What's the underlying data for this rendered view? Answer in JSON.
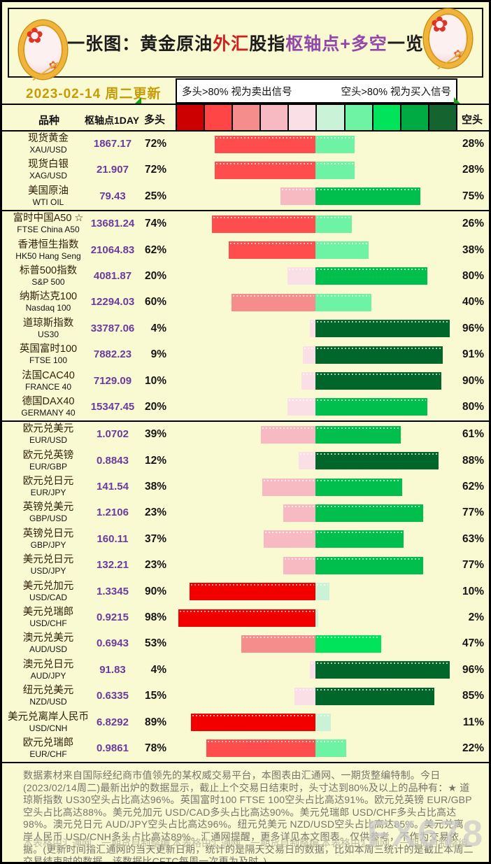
{
  "header": {
    "title_parts": [
      {
        "text": "一张图：黄金原油",
        "color": "#1c1c1c"
      },
      {
        "text": "外汇",
        "color": "#cf2020"
      },
      {
        "text": "股指",
        "color": "#1c1c1c"
      },
      {
        "text": "枢轴点+多空",
        "color": "#9548a8"
      },
      {
        "text": "一览",
        "color": "#1c1c1c"
      }
    ],
    "date": "2023-02-14 周二更新"
  },
  "legend": {
    "long_note": "多头>80% 视为卖出信号",
    "short_note": "空头>80% 视为买入信号",
    "scale_colors": [
      "#cc0000",
      "#ff4545",
      "#f58d8d",
      "#f7bac3",
      "#fbdfe7",
      "#c9f2d6",
      "#6ef2a4",
      "#00e35a",
      "#00ab43",
      "#15632e"
    ]
  },
  "table": {
    "headers": {
      "variety": "品种",
      "pivot": "枢轴点1DAY",
      "long": "多头",
      "short": "空头"
    }
  },
  "rows": [
    {
      "group": 0,
      "name": "现货黄金",
      "code": "XAU/USD",
      "pivot": "1867.17",
      "long": "72%",
      "short": "28%",
      "long_color": "#ff4d4d",
      "short_color": "#6ef2a4"
    },
    {
      "group": 0,
      "name": "现货白银",
      "code": "XAG/USD",
      "pivot": "21.907",
      "long": "72%",
      "short": "28%",
      "long_color": "#ff4d4d",
      "short_color": "#6ef2a4"
    },
    {
      "group": 0,
      "name": "美国原油",
      "code": "WTI OIL",
      "pivot": "79.43",
      "long": "25%",
      "short": "75%",
      "long_color": "#f7bac3",
      "short_color": "#00bf4d"
    },
    {
      "group": 1,
      "name": "富时中国A50 ☆",
      "code": "FTSE China A50",
      "pivot": "13681.24",
      "long": "74%",
      "short": "26%",
      "long_color": "#ff4d4d",
      "short_color": "#6ef2a4"
    },
    {
      "group": 1,
      "name": "香港恒生指数",
      "code": "HK50 Hang Seng",
      "pivot": "21064.83",
      "long": "62%",
      "short": "38%",
      "long_color": "#ff4d4d",
      "short_color": "#6ef2a4"
    },
    {
      "group": 1,
      "name": "标普500指数",
      "code": "S&P 500",
      "pivot": "4081.87",
      "long": "20%",
      "short": "80%",
      "long_color": "#fbdfe7",
      "short_color": "#00bf4d"
    },
    {
      "group": 1,
      "name": "纳斯达克100",
      "code": "Nasdaq 100",
      "pivot": "12294.03",
      "long": "60%",
      "short": "40%",
      "long_color": "#f58d8d",
      "short_color": "#6ef2a4"
    },
    {
      "group": 1,
      "name": "道琼斯指数",
      "code": "US30",
      "pivot": "33787.06",
      "long": "4%",
      "short": "96%",
      "long_color": "#fbdfe7",
      "short_color": "#006629"
    },
    {
      "group": 1,
      "name": "英国富时100",
      "code": "FTSE 100",
      "pivot": "7882.23",
      "long": "9%",
      "short": "91%",
      "long_color": "#fbdfe7",
      "short_color": "#006629"
    },
    {
      "group": 1,
      "name": "法国CAC40",
      "code": "FRANCE 40",
      "pivot": "7129.09",
      "long": "10%",
      "short": "90%",
      "long_color": "#fbdfe7",
      "short_color": "#006629"
    },
    {
      "group": 1,
      "name": "德国DAX40",
      "code": "GERMANY 40",
      "pivot": "15347.45",
      "long": "20%",
      "short": "80%",
      "long_color": "#fbdfe7",
      "short_color": "#00bf4d"
    },
    {
      "group": 2,
      "name": "欧元兑美元",
      "code": "EUR/USD",
      "pivot": "1.0702",
      "long": "39%",
      "short": "61%",
      "long_color": "#f7bac3",
      "short_color": "#00bf4d"
    },
    {
      "group": 2,
      "name": "欧元兑英镑",
      "code": "EUR/GBP",
      "pivot": "0.8843",
      "long": "12%",
      "short": "88%",
      "long_color": "#fbdfe7",
      "short_color": "#006629"
    },
    {
      "group": 2,
      "name": "欧元兑日元",
      "code": "EUR/JPY",
      "pivot": "141.54",
      "long": "38%",
      "short": "62%",
      "long_color": "#f7bac3",
      "short_color": "#00bf4d"
    },
    {
      "group": 2,
      "name": "英镑兑美元",
      "code": "GBP/USD",
      "pivot": "1.2106",
      "long": "23%",
      "short": "77%",
      "long_color": "#f7bac3",
      "short_color": "#00bf4d"
    },
    {
      "group": 2,
      "name": "英镑兑日元",
      "code": "GBP/JPY",
      "pivot": "160.11",
      "long": "37%",
      "short": "63%",
      "long_color": "#f7bac3",
      "short_color": "#00bf4d"
    },
    {
      "group": 2,
      "name": "美元兑日元",
      "code": "USD/JPY",
      "pivot": "132.21",
      "long": "23%",
      "short": "77%",
      "long_color": "#f7bac3",
      "short_color": "#00bf4d"
    },
    {
      "group": 2,
      "name": "美元兑加元",
      "code": "USD/CAD",
      "pivot": "1.3345",
      "long": "90%",
      "short": "10%",
      "long_color": "#f20000",
      "short_color": "#c9f2d6"
    },
    {
      "group": 2,
      "name": "美元兑瑞郎",
      "code": "USD/CHF",
      "pivot": "0.9215",
      "long": "98%",
      "short": "2%",
      "long_color": "#f20000",
      "short_color": "#c9f2d6"
    },
    {
      "group": 2,
      "name": "澳元兑美元",
      "code": "AUD/USD",
      "pivot": "0.6943",
      "long": "53%",
      "short": "47%",
      "long_color": "#f58d8d",
      "short_color": "#00e35a"
    },
    {
      "group": 2,
      "name": "澳元兑日元",
      "code": "AUD/JPY",
      "pivot": "91.83",
      "long": "4%",
      "short": "96%",
      "long_color": "#fbdfe7",
      "short_color": "#006629"
    },
    {
      "group": 2,
      "name": "纽元兑美元",
      "code": "NZD/USD",
      "pivot": "0.6335",
      "long": "15%",
      "short": "85%",
      "long_color": "#fbdfe7",
      "short_color": "#006629"
    },
    {
      "group": 2,
      "name": "美元兑离岸人民币",
      "code": "USD/CNH",
      "pivot": "6.8292",
      "long": "89%",
      "short": "11%",
      "long_color": "#f20000",
      "short_color": "#c9f2d6"
    },
    {
      "group": 2,
      "name": "欧元兑瑞郎",
      "code": "EUR/CHF",
      "pivot": "0.9861",
      "long": "78%",
      "short": "22%",
      "long_color": "#ff4d4d",
      "short_color": "#6ef2a4"
    }
  ],
  "footer": {
    "disclaimer": "数据素材来自国际经纪商市值领先的某权威交易平台，本图表由汇通网、一期货整编特制。今日(2023/02/14周二)最新出炉的数据显示，截止上个交易日结束时，头寸达到80%及以上的品种有：★ 道琼斯指数 US30空头占比高达96%。英国富时100 FTSE 100空头占比高达91%。欧元兑英镑 EUR/GBP空头占比高达88%。美元兑加元 USD/CAD多头占比高达90%。美元兑瑞郎 USD/CHF多头占比高达98%。澳元兑日元 AUD/JPY空头占比高达96%。纽元兑美元 NZD/USD空头占比高达85%。美元兑离岸人民币 USD/CNH多头占比高达89%。汇通网提醒，更多详见本文图表。仅供参考，不作为交易依据。(更新时间指汇通网的当天更新日期，统计的是隔天交易日的数据，比如本周三统计的是截止本周二交易结束时的数据。该数据比CFTC每周一次更为及时。)",
    "credits": [
      "本表格由汇通网、一期货自制整编",
      "本表格由汇通网、一期货自制整编",
      "本表格由汇通网、一期货自制整编"
    ],
    "watermark": "FX678"
  },
  "chart_data": {
    "type": "bar",
    "title": "黄金原油外汇股指枢轴点+多空一览 (2023-02-14 周二更新)",
    "categories": [
      "XAU/USD",
      "XAG/USD",
      "WTI OIL",
      "FTSE China A50",
      "HK50 Hang Seng",
      "S&P 500",
      "Nasdaq 100",
      "US30",
      "FTSE 100",
      "FRANCE 40",
      "GERMANY 40",
      "EUR/USD",
      "EUR/GBP",
      "EUR/JPY",
      "GBP/USD",
      "GBP/JPY",
      "USD/JPY",
      "USD/CAD",
      "USD/CHF",
      "AUD/USD",
      "AUD/JPY",
      "NZD/USD",
      "USD/CNH",
      "EUR/CHF"
    ],
    "series": [
      {
        "name": "多头%",
        "values": [
          72,
          72,
          25,
          74,
          62,
          20,
          60,
          4,
          9,
          10,
          20,
          39,
          12,
          38,
          23,
          37,
          23,
          90,
          98,
          53,
          4,
          15,
          89,
          78
        ]
      },
      {
        "name": "空头%",
        "values": [
          28,
          28,
          75,
          26,
          38,
          80,
          40,
          96,
          91,
          90,
          80,
          61,
          88,
          62,
          77,
          63,
          77,
          10,
          2,
          47,
          96,
          85,
          11,
          22
        ]
      },
      {
        "name": "枢轴点1DAY",
        "values": [
          1867.17,
          21.907,
          79.43,
          13681.24,
          21064.83,
          4081.87,
          12294.03,
          33787.06,
          7882.23,
          7129.09,
          15347.45,
          1.0702,
          0.8843,
          141.54,
          1.2106,
          160.11,
          132.21,
          1.3345,
          0.9215,
          0.6943,
          91.83,
          0.6335,
          6.8292,
          0.9861
        ]
      }
    ],
    "value_range": [
      0,
      100
    ],
    "legend_position": "top",
    "grid": false,
    "orientation": "horizontal-diverging"
  }
}
